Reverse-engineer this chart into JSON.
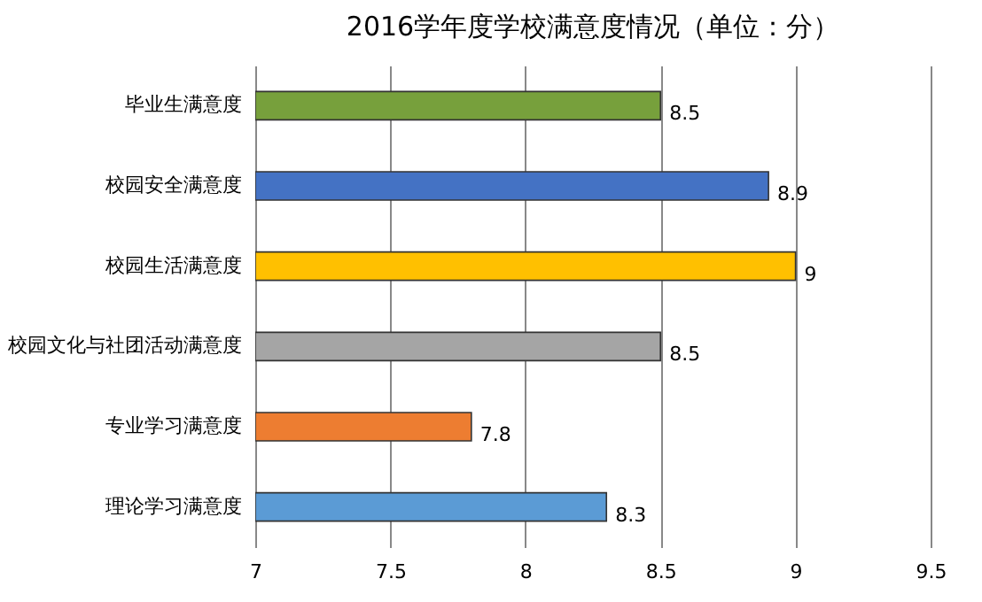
{
  "chart_data": {
    "type": "bar",
    "orientation": "horizontal",
    "title": "2016学年度学校满意度情况（单位：分）",
    "categories": [
      "毕业生满意度",
      "校园安全满意度",
      "校园生活满意度",
      "校园文化与社团活动满意度",
      "专业学习满意度",
      "理论学习满意度"
    ],
    "values": [
      8.5,
      8.9,
      9,
      8.5,
      7.8,
      8.3
    ],
    "colors": [
      "#77a03c",
      "#4472c4",
      "#ffc000",
      "#a5a5a5",
      "#ed7d31",
      "#5b9bd5"
    ],
    "xlim": [
      7,
      9.5
    ],
    "xticks": [
      7,
      7.5,
      8,
      8.5,
      9,
      9.5
    ],
    "grid": "x",
    "data_labels": true
  }
}
